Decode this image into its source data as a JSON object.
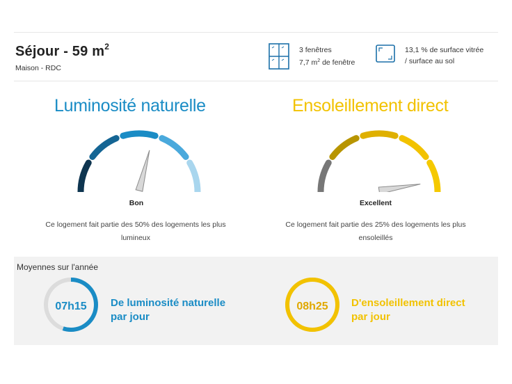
{
  "room": {
    "title": "Séjour - 59 m",
    "title_sup": "2",
    "subtitle": "Maison - RDC"
  },
  "windows": {
    "icon": "window-icon",
    "count_text": "3 fenêtres",
    "area_text": "7,7 m",
    "area_sup": "2",
    "area_suffix": " de fenêtre"
  },
  "surface": {
    "icon": "glazed-surface-icon",
    "line1": "13,1 % de surface vitrée",
    "line2": "/ surface au sol"
  },
  "luminosity": {
    "title": "Luminosité naturelle",
    "rating": "Bon",
    "level": 0.58,
    "description": "Ce logement fait partie des 50% des logements les plus lumineux",
    "colors": [
      "#0e3550",
      "#146594",
      "#1a8cc5",
      "#4aa9dc",
      "#a9d6ee"
    ]
  },
  "sunshine": {
    "title": "Ensoleillement direct",
    "rating": "Excellent",
    "level": 0.95,
    "description": "Ce logement fait partie des 25% des logements les plus ensoleillés",
    "colors": [
      "#777777",
      "#b89500",
      "#dfb000",
      "#f2c200",
      "#f5c900"
    ]
  },
  "averages": {
    "title": "Moyennes sur l'année",
    "luminosity": {
      "value": "07h15",
      "line1": "De luminosité naturelle",
      "line2": "par jour",
      "fraction": 0.55,
      "color": "#1a8cc5"
    },
    "sunshine": {
      "value": "08h25",
      "line1": "D'ensoleillement direct",
      "line2": "par jour",
      "fraction": 1.0,
      "color": "#f2c200"
    }
  }
}
